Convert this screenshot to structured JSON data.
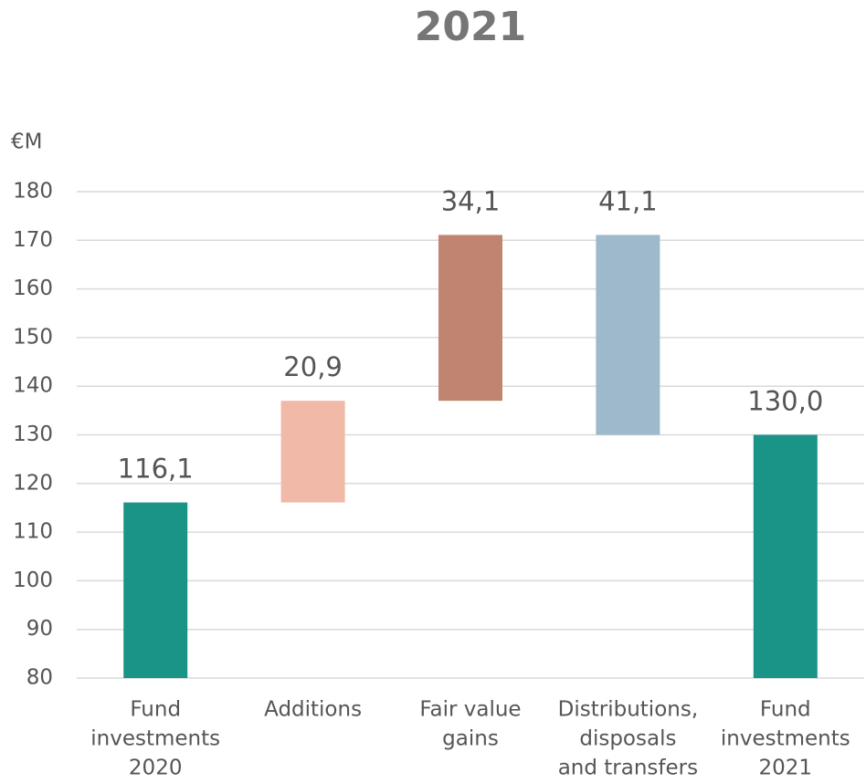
{
  "chart_data": {
    "type": "waterfall",
    "title": "2021",
    "y_label": "€M",
    "categories": [
      [
        "Fund",
        "investments",
        "2020"
      ],
      [
        "Additions"
      ],
      [
        "Fair value",
        "gains"
      ],
      [
        "Distributions,",
        "disposals",
        "and transfers"
      ],
      [
        "Fund",
        "investments",
        "2021"
      ]
    ],
    "measure": [
      "absolute",
      "relative",
      "relative",
      "relative",
      "absolute"
    ],
    "values": [
      116.1,
      20.9,
      34.1,
      -41.1,
      130.0
    ],
    "value_labels": [
      "116,1",
      "20,9",
      "34,1",
      "41,1",
      "130,0"
    ],
    "colors": [
      "#1b9488",
      "#f0b9a8",
      "#c08471",
      "#9db9cb",
      "#1b9488"
    ],
    "ylim": [
      80,
      180
    ],
    "yticks": [
      80,
      90,
      100,
      110,
      120,
      130,
      140,
      150,
      160,
      170,
      180
    ],
    "grid": true
  }
}
